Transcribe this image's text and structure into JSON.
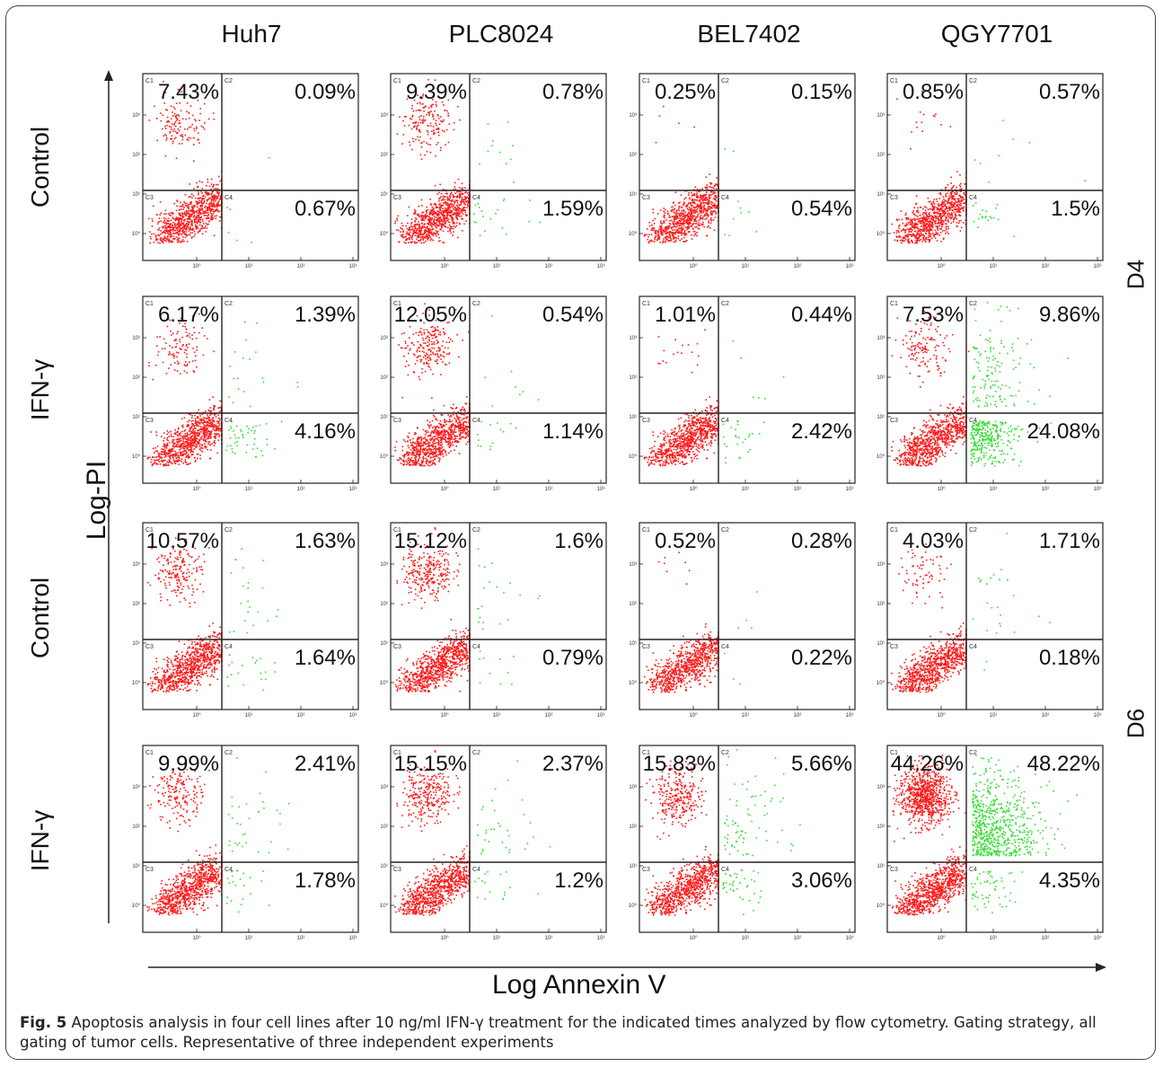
{
  "column_headers": [
    "Huh7",
    "PLC8024",
    "BEL7402",
    "QGY7701"
  ],
  "row_headers": [
    "Control",
    "IFN-γ",
    "Control",
    "IFN-γ"
  ],
  "day_labels": [
    "D4",
    "D6"
  ],
  "y_axis_title": "Log-PI",
  "x_axis_title": "Log Annexin V",
  "caption": {
    "label": "Fig. 5",
    "text": " Apoptosis analysis in four cell lines after 10 ng/ml IFN-γ treatment for the indicated times analyzed by flow cytometry. Gating strategy, all gating of tumor cells. Representative of three independent experiments"
  },
  "quadrant_tags": [
    "C1",
    "C2",
    "C3",
    "C4"
  ],
  "colors": {
    "live_dots": "#ff1a1a",
    "annexin_dots": "#33dd33",
    "gate_lines": "#222222"
  },
  "chart_data": {
    "type": "scatter",
    "xlabel": "Log Annexin V",
    "ylabel": "Log-PI",
    "x_scale": "log",
    "y_scale": "log",
    "ticks_x": [
      "10⁰",
      "10¹",
      "10²",
      "10³"
    ],
    "ticks_y": [
      "10⁰",
      "10¹",
      "10²",
      "10³"
    ],
    "panels": [
      {
        "row": "Control",
        "day": "D4",
        "cell_line": "Huh7",
        "C1": "7.43%",
        "C2": "0.09%",
        "C3_C4_note": "",
        "C4": "0.67%"
      },
      {
        "row": "Control",
        "day": "D4",
        "cell_line": "PLC8024",
        "C1": "9.39%",
        "C2": "0.78%",
        "C4": "1.59%"
      },
      {
        "row": "Control",
        "day": "D4",
        "cell_line": "BEL7402",
        "C1": "0.25%",
        "C2": "0.15%",
        "C4": "0.54%"
      },
      {
        "row": "Control",
        "day": "D4",
        "cell_line": "QGY7701",
        "C1": "0.85%",
        "C2": "0.57%",
        "C4": "1.5%"
      },
      {
        "row": "IFN-γ",
        "day": "D4",
        "cell_line": "Huh7",
        "C1": "6.17%",
        "C2": "1.39%",
        "C4": "4.16%"
      },
      {
        "row": "IFN-γ",
        "day": "D4",
        "cell_line": "PLC8024",
        "C1": "12.05%",
        "C2": "0.54%",
        "C4": "1.14%"
      },
      {
        "row": "IFN-γ",
        "day": "D4",
        "cell_line": "BEL7402",
        "C1": "1.01%",
        "C2": "0.44%",
        "C4": "2.42%"
      },
      {
        "row": "IFN-γ",
        "day": "D4",
        "cell_line": "QGY7701",
        "C1": "7.53%",
        "C2": "9.86%",
        "C4": "24.08%"
      },
      {
        "row": "Control",
        "day": "D6",
        "cell_line": "Huh7",
        "C1": "10.57%",
        "C2": "1.63%",
        "C4": "1.64%"
      },
      {
        "row": "Control",
        "day": "D6",
        "cell_line": "PLC8024",
        "C1": "15.12%",
        "C2": "1.6%",
        "C4": "0.79%"
      },
      {
        "row": "Control",
        "day": "D6",
        "cell_line": "BEL7402",
        "C1": "0.52%",
        "C2": "0.28%",
        "C4": "0.22%"
      },
      {
        "row": "Control",
        "day": "D6",
        "cell_line": "QGY7701",
        "C1": "4.03%",
        "C2": "1.71%",
        "C4": "0.18%"
      },
      {
        "row": "IFN-γ",
        "day": "D6",
        "cell_line": "Huh7",
        "C1": "9.99%",
        "C2": "2.41%",
        "C4": "1.78%"
      },
      {
        "row": "IFN-γ",
        "day": "D6",
        "cell_line": "PLC8024",
        "C1": "15.15%",
        "C2": "2.37%",
        "C4": "1.2%"
      },
      {
        "row": "IFN-γ",
        "day": "D6",
        "cell_line": "BEL7402",
        "C1": "15.83%",
        "C2": "5.66%",
        "C4": "3.06%"
      },
      {
        "row": "IFN-γ",
        "day": "D6",
        "cell_line": "QGY7701",
        "C1": "44.26%",
        "C2": "48.22%",
        "C4": "4.35%"
      }
    ]
  }
}
